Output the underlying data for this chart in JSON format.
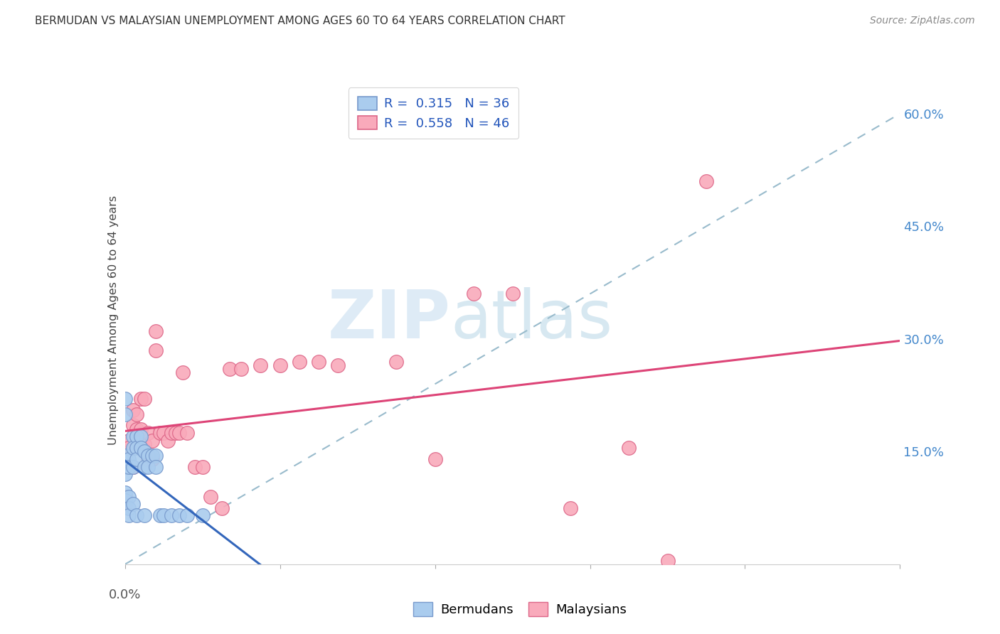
{
  "title": "BERMUDAN VS MALAYSIAN UNEMPLOYMENT AMONG AGES 60 TO 64 YEARS CORRELATION CHART",
  "source": "Source: ZipAtlas.com",
  "ylabel": "Unemployment Among Ages 60 to 64 years",
  "xlim": [
    0.0,
    0.2
  ],
  "ylim": [
    0.0,
    0.65
  ],
  "y_ticks_right": [
    0.15,
    0.3,
    0.45,
    0.6
  ],
  "y_tick_labels_right": [
    "15.0%",
    "30.0%",
    "45.0%",
    "60.0%"
  ],
  "bermudans_R": "0.315",
  "bermudans_N": "36",
  "malaysians_R": "0.558",
  "malaysians_N": "46",
  "bermudan_color": "#aaccee",
  "bermudan_edge": "#7799cc",
  "malaysian_color": "#f9aabb",
  "malaysian_edge": "#dd6688",
  "trend_bermudan_color": "#3366bb",
  "trend_malaysian_color": "#dd4477",
  "diagonal_color": "#99bbcc",
  "watermark_ZIP": "ZIP",
  "watermark_atlas": "atlas",
  "bermudans_x": [
    0.0,
    0.0,
    0.0,
    0.0,
    0.0,
    0.0,
    0.0,
    0.001,
    0.001,
    0.001,
    0.001,
    0.001,
    0.002,
    0.002,
    0.002,
    0.002,
    0.003,
    0.003,
    0.003,
    0.003,
    0.004,
    0.004,
    0.005,
    0.005,
    0.005,
    0.006,
    0.006,
    0.007,
    0.008,
    0.008,
    0.009,
    0.01,
    0.012,
    0.014,
    0.016,
    0.02
  ],
  "bermudans_y": [
    0.22,
    0.2,
    0.145,
    0.13,
    0.12,
    0.095,
    0.085,
    0.14,
    0.13,
    0.09,
    0.075,
    0.065,
    0.17,
    0.155,
    0.13,
    0.08,
    0.17,
    0.155,
    0.14,
    0.065,
    0.17,
    0.155,
    0.15,
    0.13,
    0.065,
    0.145,
    0.13,
    0.145,
    0.145,
    0.13,
    0.065,
    0.065,
    0.065,
    0.065,
    0.065,
    0.065
  ],
  "malaysians_x": [
    0.0,
    0.0,
    0.001,
    0.001,
    0.002,
    0.002,
    0.002,
    0.003,
    0.003,
    0.004,
    0.004,
    0.005,
    0.005,
    0.006,
    0.006,
    0.007,
    0.007,
    0.008,
    0.008,
    0.009,
    0.01,
    0.011,
    0.012,
    0.013,
    0.014,
    0.015,
    0.016,
    0.018,
    0.02,
    0.022,
    0.025,
    0.027,
    0.03,
    0.035,
    0.04,
    0.045,
    0.05,
    0.055,
    0.07,
    0.08,
    0.09,
    0.1,
    0.115,
    0.13,
    0.14,
    0.15
  ],
  "malaysians_y": [
    0.09,
    0.08,
    0.165,
    0.155,
    0.205,
    0.185,
    0.13,
    0.2,
    0.18,
    0.22,
    0.18,
    0.22,
    0.16,
    0.175,
    0.14,
    0.165,
    0.14,
    0.31,
    0.285,
    0.175,
    0.175,
    0.165,
    0.175,
    0.175,
    0.175,
    0.255,
    0.175,
    0.13,
    0.13,
    0.09,
    0.075,
    0.26,
    0.26,
    0.265,
    0.265,
    0.27,
    0.27,
    0.265,
    0.27,
    0.14,
    0.36,
    0.36,
    0.075,
    0.155,
    0.005,
    0.51
  ]
}
